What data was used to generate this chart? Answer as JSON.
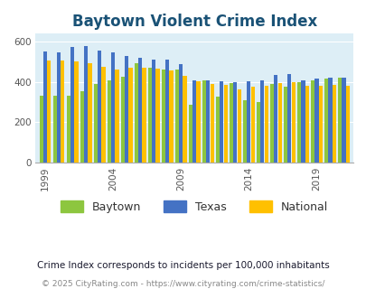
{
  "title": "Baytown Violent Crime Index",
  "years": [
    1999,
    2000,
    2001,
    2002,
    2003,
    2004,
    2005,
    2006,
    2007,
    2008,
    2009,
    2010,
    2011,
    2012,
    2013,
    2014,
    2015,
    2016,
    2017,
    2018,
    2019,
    2020,
    2021
  ],
  "baytown": [
    330,
    330,
    330,
    355,
    390,
    410,
    425,
    495,
    470,
    460,
    460,
    285,
    410,
    325,
    395,
    310,
    300,
    390,
    375,
    400,
    410,
    415,
    420
  ],
  "texas": [
    550,
    545,
    575,
    580,
    555,
    545,
    530,
    520,
    510,
    510,
    490,
    410,
    410,
    405,
    400,
    405,
    410,
    435,
    440,
    410,
    415,
    420,
    420
  ],
  "national": [
    505,
    505,
    500,
    495,
    475,
    460,
    470,
    470,
    465,
    455,
    430,
    405,
    390,
    385,
    365,
    375,
    380,
    395,
    400,
    380,
    380,
    385,
    380
  ],
  "bar_colors": {
    "baytown": "#8dc63f",
    "texas": "#4472c4",
    "national": "#ffc000"
  },
  "bg_color": "#ddeef6",
  "ylim": [
    0,
    640
  ],
  "yticks": [
    0,
    200,
    400,
    600
  ],
  "xtick_labels": [
    "1999",
    "2004",
    "2009",
    "2014",
    "2019"
  ],
  "xtick_positions": [
    0,
    5,
    10,
    15,
    20
  ],
  "legend_labels": [
    "Baytown",
    "Texas",
    "National"
  ],
  "footnote1": "Crime Index corresponds to incidents per 100,000 inhabitants",
  "footnote2": "© 2025 CityRating.com - https://www.cityrating.com/crime-statistics/",
  "title_color": "#1a5276",
  "footnote1_color": "#1a1a2e",
  "footnote2_color": "#888888",
  "title_fontsize": 12,
  "legend_fontsize": 9,
  "tick_fontsize": 7.5
}
